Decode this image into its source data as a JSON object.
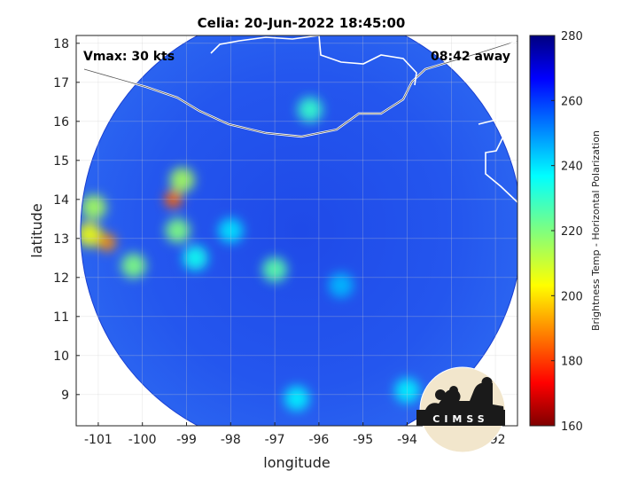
{
  "chart_data": {
    "type": "heatmap",
    "title": "Celia: 20-Jun-2022 18:45:00",
    "xlabel": "longitude",
    "ylabel": "latitude",
    "xlim": [
      -101.5,
      -91.5
    ],
    "ylim": [
      8.2,
      18.2
    ],
    "x_ticks": [
      "-101",
      "-100",
      "-99",
      "-98",
      "-97",
      "-96",
      "-95",
      "-94",
      "-93",
      "-92"
    ],
    "y_ticks": [
      "9",
      "10",
      "11",
      "12",
      "13",
      "14",
      "15",
      "16",
      "17",
      "18"
    ],
    "grid": true,
    "annotations": {
      "vmax": "Vmax: 30 kts",
      "time_away": "08:42 away"
    },
    "colorbar": {
      "label": "Brightness Temp - Horizontal Polarization",
      "range": [
        160,
        280
      ],
      "ticks": [
        "160",
        "180",
        "200",
        "220",
        "240",
        "260",
        "280"
      ],
      "colormap": "jet"
    },
    "swath": {
      "center_lon": -96.4,
      "center_lat": 13.2,
      "radius_deg": 5.0
    },
    "cold_features": [
      {
        "lon": -101.2,
        "lat": 13.1,
        "value": 205
      },
      {
        "lon": -100.8,
        "lat": 12.9,
        "value": 190
      },
      {
        "lon": -101.1,
        "lat": 13.8,
        "value": 215
      },
      {
        "lon": -99.3,
        "lat": 14.0,
        "value": 185
      },
      {
        "lon": -99.1,
        "lat": 14.5,
        "value": 215
      },
      {
        "lon": -99.2,
        "lat": 13.2,
        "value": 220
      },
      {
        "lon": -100.2,
        "lat": 12.3,
        "value": 220
      },
      {
        "lon": -97.0,
        "lat": 12.2,
        "value": 225
      },
      {
        "lon": -96.2,
        "lat": 16.3,
        "value": 230
      },
      {
        "lon": -98.8,
        "lat": 12.5,
        "value": 235
      },
      {
        "lon": -98.0,
        "lat": 13.2,
        "value": 240
      },
      {
        "lon": -96.5,
        "lat": 8.9,
        "value": 238
      },
      {
        "lon": -94.0,
        "lat": 9.1,
        "value": 238
      },
      {
        "lon": -95.5,
        "lat": 11.8,
        "value": 245
      }
    ],
    "logo_text": "CIMSS"
  }
}
